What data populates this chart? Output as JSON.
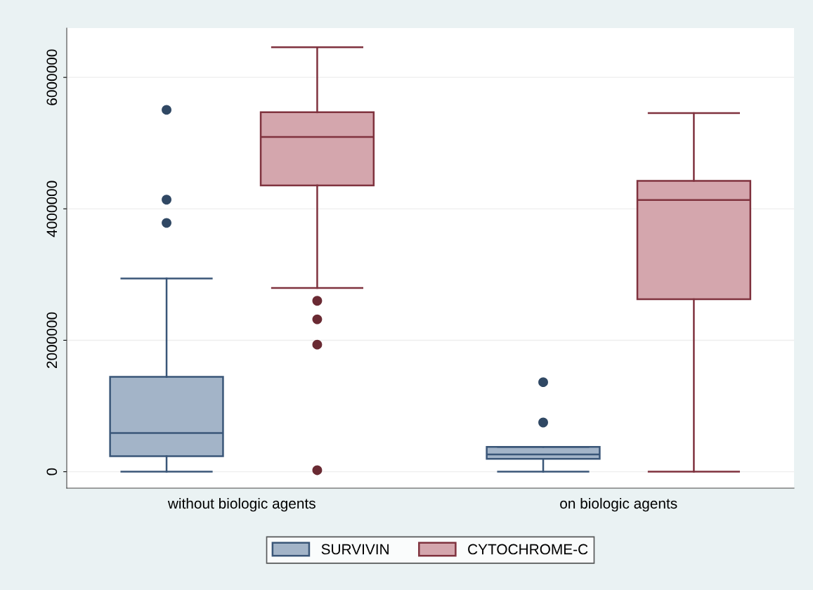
{
  "chart_data": {
    "type": "box",
    "categories": [
      "without biologic agents",
      "on biologic agents"
    ],
    "series": [
      {
        "name": "SURVIVIN",
        "color": "#a3b4c8",
        "boxes": [
          {
            "low": 0,
            "q1": 236000,
            "median": 590000,
            "q3": 1443000,
            "high": 2941000,
            "outliers": [
              3786000,
              4140000,
              5506000
            ]
          },
          {
            "low": 0,
            "q1": 195000,
            "median": 263000,
            "q3": 377000,
            "high": 377000,
            "outliers": [
              749000,
              1362000
            ]
          }
        ]
      },
      {
        "name": "CYTOCHROME-C",
        "color": "#d4a6ad",
        "boxes": [
          {
            "low": 2796000,
            "q1": 4357000,
            "median": 5093000,
            "q3": 5469000,
            "high": 6459000,
            "outliers": [
              2601000,
              2319000,
              1934000,
              23000
            ]
          },
          {
            "low": 0,
            "q1": 2624000,
            "median": 4135000,
            "q3": 4426000,
            "high": 5456000
          }
        ]
      }
    ],
    "ylim": [
      -250000,
      6750000
    ],
    "yticks": [
      0,
      2000000,
      4000000,
      6000000
    ],
    "grid": "y",
    "legend": "bottom"
  }
}
